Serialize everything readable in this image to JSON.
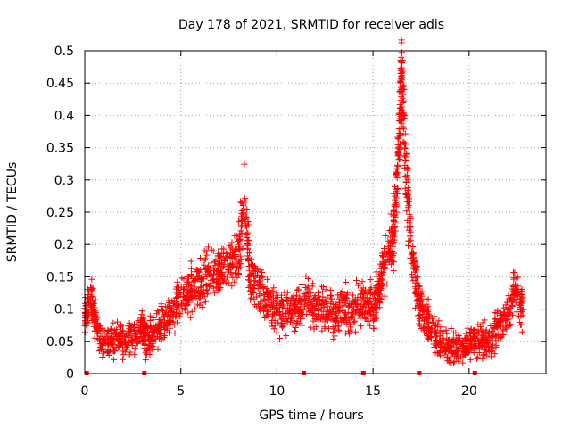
{
  "chart_data": {
    "type": "scatter",
    "title": "Day 178 of 2021, SRMTID for receiver adis",
    "xlabel": "GPS time / hours",
    "ylabel": "SRMTID / TECUs",
    "xlim": [
      0,
      24
    ],
    "ylim": [
      0,
      0.5
    ],
    "x_ticks": [
      0,
      5,
      10,
      15,
      20
    ],
    "x_tick_labels": [
      "0",
      "5",
      "10",
      "15",
      "20"
    ],
    "y_ticks": [
      0,
      0.05,
      0.1,
      0.15,
      0.2,
      0.25,
      0.3,
      0.35,
      0.4,
      0.45,
      0.5
    ],
    "y_tick_labels": [
      "0",
      "0.05",
      "0.1",
      "0.15",
      "0.2",
      "0.25",
      "0.3",
      "0.35",
      "0.4",
      "0.45",
      "0.5"
    ],
    "grid": true,
    "marker": "plus",
    "color": "#ff0000",
    "series": [
      {
        "name": "SRMTID",
        "points_per_segment": 45,
        "trend": [
          [
            0.0,
            0.09
          ],
          [
            0.3,
            0.12
          ],
          [
            0.6,
            0.07
          ],
          [
            1.0,
            0.045
          ],
          [
            1.5,
            0.05
          ],
          [
            2.0,
            0.055
          ],
          [
            2.5,
            0.06
          ],
          [
            3.0,
            0.07
          ],
          [
            3.2,
            0.05
          ],
          [
            3.6,
            0.06
          ],
          [
            4.0,
            0.08
          ],
          [
            4.5,
            0.1
          ],
          [
            5.0,
            0.11
          ],
          [
            5.5,
            0.13
          ],
          [
            6.0,
            0.14
          ],
          [
            6.5,
            0.15
          ],
          [
            7.0,
            0.16
          ],
          [
            7.5,
            0.17
          ],
          [
            8.0,
            0.18
          ],
          [
            8.3,
            0.27
          ],
          [
            8.6,
            0.15
          ],
          [
            9.0,
            0.13
          ],
          [
            9.5,
            0.11
          ],
          [
            10.0,
            0.1
          ],
          [
            10.5,
            0.09
          ],
          [
            11.0,
            0.1
          ],
          [
            11.5,
            0.11
          ],
          [
            12.0,
            0.1
          ],
          [
            12.5,
            0.1
          ],
          [
            13.0,
            0.09
          ],
          [
            13.5,
            0.1
          ],
          [
            14.0,
            0.1
          ],
          [
            14.5,
            0.11
          ],
          [
            15.0,
            0.1
          ],
          [
            15.3,
            0.13
          ],
          [
            15.6,
            0.17
          ],
          [
            16.0,
            0.2
          ],
          [
            16.2,
            0.27
          ],
          [
            16.4,
            0.4
          ],
          [
            16.5,
            0.46
          ],
          [
            16.7,
            0.32
          ],
          [
            17.0,
            0.18
          ],
          [
            17.3,
            0.13
          ],
          [
            17.6,
            0.09
          ],
          [
            18.0,
            0.07
          ],
          [
            18.5,
            0.05
          ],
          [
            19.0,
            0.04
          ],
          [
            19.5,
            0.04
          ],
          [
            20.0,
            0.045
          ],
          [
            20.5,
            0.05
          ],
          [
            21.0,
            0.05
          ],
          [
            21.5,
            0.07
          ],
          [
            22.0,
            0.09
          ],
          [
            22.4,
            0.13
          ],
          [
            22.8,
            0.1
          ]
        ],
        "spread": 0.025
      }
    ],
    "gap_markers_x": [
      0.1,
      3.1,
      11.4,
      14.5,
      17.4,
      20.3
    ]
  }
}
